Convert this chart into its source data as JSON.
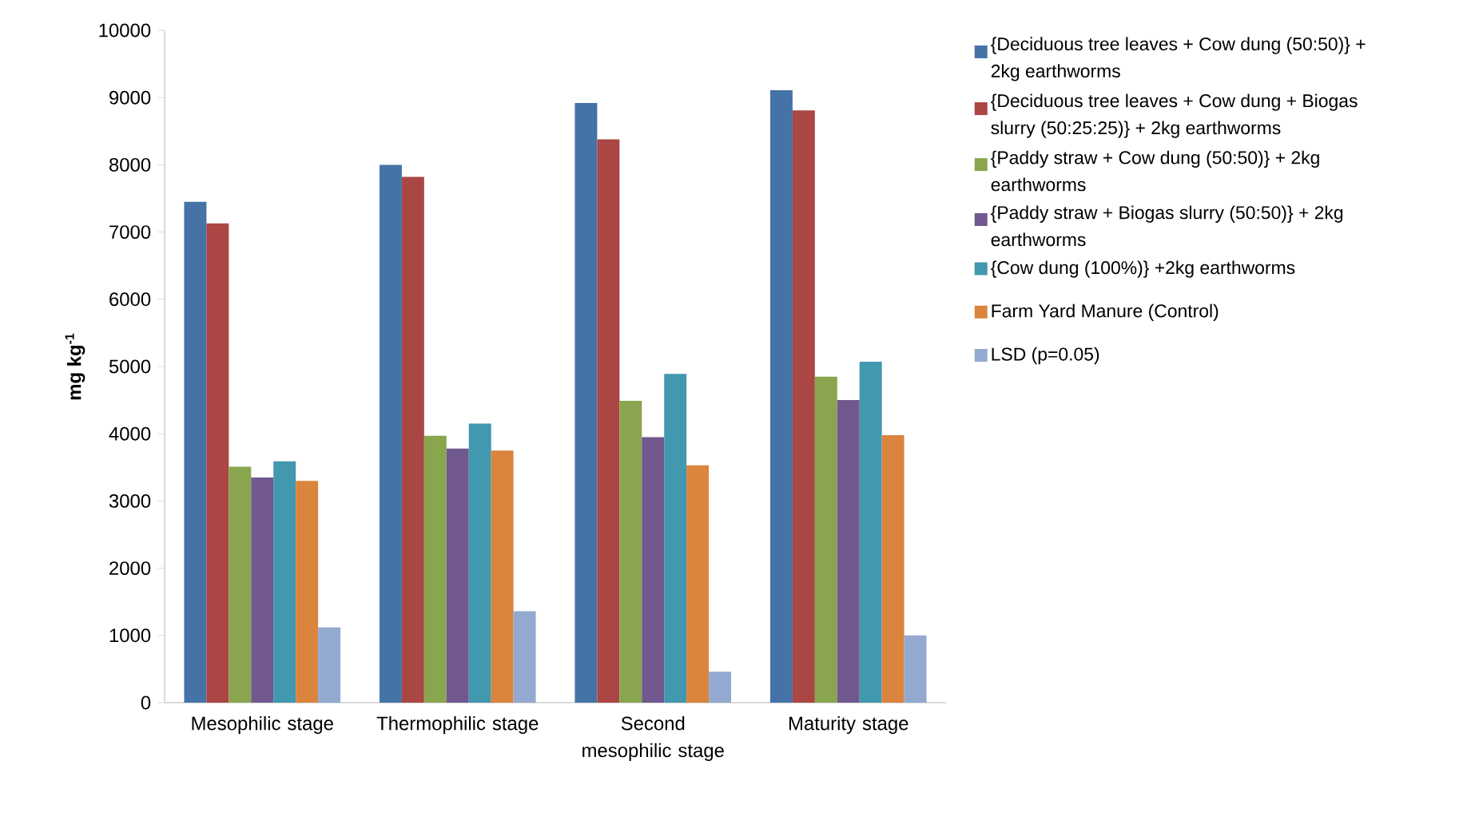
{
  "chart_data": {
    "type": "bar",
    "ylabel": "mg kg$^{-1}$",
    "categories": [
      "Mesophilic stage",
      "Thermophilic stage",
      "Second mesophilic stage",
      "Maturity stage"
    ],
    "ylim": [
      0,
      10000
    ],
    "yticks": [
      0,
      1000,
      2000,
      3000,
      4000,
      5000,
      6000,
      7000,
      8000,
      9000,
      10000
    ],
    "grid": false,
    "legend": "right",
    "series": [
      {
        "name": "{Deciduous tree leaves + Cow dung (50:50)} + 2kg earthworms",
        "color": "#4573a7",
        "values": [
          7450,
          8000,
          8920,
          9110
        ]
      },
      {
        "name": "{Deciduous tree leaves + Cow dung + Biogas slurry (50:25:25)} + 2kg earthworms",
        "color": "#aa4643",
        "values": [
          7130,
          7820,
          8380,
          8810
        ]
      },
      {
        "name": "{Paddy straw + Cow dung (50:50)} + 2kg earthworms",
        "color": "#89a54e",
        "values": [
          3510,
          3970,
          4490,
          4850
        ]
      },
      {
        "name": "{Paddy straw + Biogas slurry (50:50)} + 2kg earthworms",
        "color": "#71588f",
        "values": [
          3350,
          3780,
          3950,
          4500
        ]
      },
      {
        "name": "{Cow dung (100%)} +2kg earthworms",
        "color": "#4198af",
        "values": [
          3590,
          4150,
          4890,
          5070
        ]
      },
      {
        "name": "Farm Yard Manure (Control)",
        "color": "#db843d",
        "values": [
          3300,
          3750,
          3530,
          3980
        ]
      },
      {
        "name": "LSD (p=0.05)",
        "color": "#93a9cf",
        "values": [
          1120,
          1360,
          460,
          1000
        ]
      }
    ]
  }
}
